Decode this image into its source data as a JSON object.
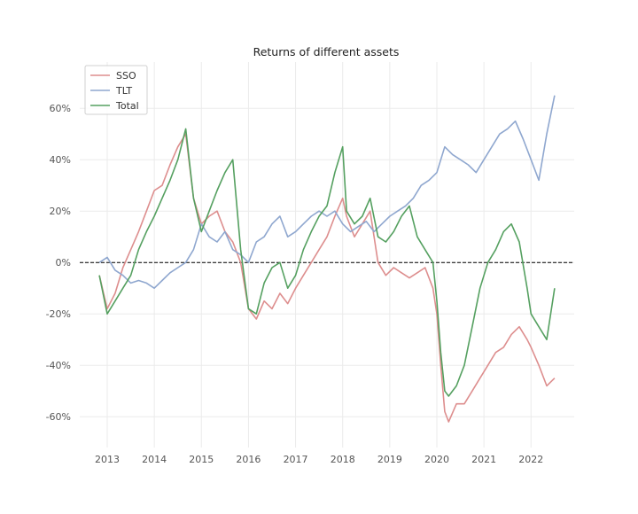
{
  "chart_data": {
    "type": "line",
    "title": "Returns of different assets",
    "xlabel": "",
    "ylabel": "",
    "x_ticks": [
      "2013",
      "2014",
      "2015",
      "2016",
      "2017",
      "2018",
      "2019",
      "2020",
      "2021",
      "2022"
    ],
    "y_ticks": [
      "-60%",
      "-40%",
      "-20%",
      "0%",
      "20%",
      "40%",
      "60%"
    ],
    "xlim": [
      "2012-06",
      "2022-12"
    ],
    "ylim": [
      -0.72,
      0.78
    ],
    "grid": true,
    "legend_position": "top-left",
    "reference_line": {
      "y": 0,
      "style": "dashed",
      "color": "#000000"
    },
    "series": [
      {
        "name": "SSO",
        "color": "#dd8e8e",
        "x": [
          "2012-11",
          "2013-01",
          "2013-03",
          "2013-05",
          "2013-07",
          "2013-09",
          "2013-11",
          "2014-01",
          "2014-03",
          "2014-05",
          "2014-07",
          "2014-09",
          "2014-11",
          "2015-01",
          "2015-03",
          "2015-05",
          "2015-07",
          "2015-09",
          "2015-11",
          "2016-01",
          "2016-03",
          "2016-05",
          "2016-07",
          "2016-09",
          "2016-11",
          "2017-01",
          "2017-03",
          "2017-05",
          "2017-07",
          "2017-09",
          "2017-11",
          "2018-01",
          "2018-02",
          "2018-04",
          "2018-06",
          "2018-08",
          "2018-10",
          "2018-12",
          "2019-02",
          "2019-04",
          "2019-06",
          "2019-08",
          "2019-10",
          "2019-12",
          "2020-01",
          "2020-02",
          "2020-03",
          "2020-04",
          "2020-06",
          "2020-08",
          "2020-10",
          "2020-12",
          "2021-02",
          "2021-04",
          "2021-06",
          "2021-08",
          "2021-10",
          "2021-12",
          "2022-01",
          "2022-03",
          "2022-05",
          "2022-07"
        ],
        "values": [
          -0.05,
          -0.18,
          -0.12,
          -0.02,
          0.05,
          0.12,
          0.2,
          0.28,
          0.3,
          0.38,
          0.45,
          0.5,
          0.25,
          0.15,
          0.18,
          0.2,
          0.12,
          0.08,
          0.0,
          -0.18,
          -0.22,
          -0.15,
          -0.18,
          -0.12,
          -0.16,
          -0.1,
          -0.05,
          0.0,
          0.05,
          0.1,
          0.18,
          0.25,
          0.18,
          0.1,
          0.15,
          0.2,
          0.0,
          -0.05,
          -0.02,
          -0.04,
          -0.06,
          -0.04,
          -0.02,
          -0.1,
          -0.2,
          -0.4,
          -0.58,
          -0.62,
          -0.55,
          -0.55,
          -0.5,
          -0.45,
          -0.4,
          -0.35,
          -0.33,
          -0.28,
          -0.25,
          -0.3,
          -0.33,
          -0.4,
          -0.48,
          -0.45
        ]
      },
      {
        "name": "TLT",
        "color": "#8fa7cf",
        "x": [
          "2012-11",
          "2013-01",
          "2013-03",
          "2013-05",
          "2013-07",
          "2013-09",
          "2013-11",
          "2014-01",
          "2014-03",
          "2014-05",
          "2014-07",
          "2014-09",
          "2014-11",
          "2015-01",
          "2015-03",
          "2015-05",
          "2015-07",
          "2015-09",
          "2015-11",
          "2016-01",
          "2016-03",
          "2016-05",
          "2016-07",
          "2016-09",
          "2016-11",
          "2017-01",
          "2017-03",
          "2017-05",
          "2017-07",
          "2017-09",
          "2017-11",
          "2018-01",
          "2018-03",
          "2018-05",
          "2018-07",
          "2018-09",
          "2018-11",
          "2019-01",
          "2019-03",
          "2019-05",
          "2019-07",
          "2019-09",
          "2019-11",
          "2020-01",
          "2020-03",
          "2020-05",
          "2020-07",
          "2020-09",
          "2020-11",
          "2021-01",
          "2021-03",
          "2021-05",
          "2021-07",
          "2021-09",
          "2021-11",
          "2022-01",
          "2022-03",
          "2022-05",
          "2022-07"
        ],
        "values": [
          0.0,
          0.02,
          -0.03,
          -0.05,
          -0.08,
          -0.07,
          -0.08,
          -0.1,
          -0.07,
          -0.04,
          -0.02,
          0.0,
          0.05,
          0.15,
          0.1,
          0.08,
          0.12,
          0.05,
          0.03,
          0.0,
          0.08,
          0.1,
          0.15,
          0.18,
          0.1,
          0.12,
          0.15,
          0.18,
          0.2,
          0.18,
          0.2,
          0.15,
          0.12,
          0.14,
          0.16,
          0.12,
          0.15,
          0.18,
          0.2,
          0.22,
          0.25,
          0.3,
          0.32,
          0.35,
          0.45,
          0.42,
          0.4,
          0.38,
          0.35,
          0.4,
          0.45,
          0.5,
          0.52,
          0.55,
          0.48,
          0.4,
          0.32,
          0.5,
          0.65
        ]
      },
      {
        "name": "Total",
        "color": "#55a060",
        "x": [
          "2012-11",
          "2013-01",
          "2013-03",
          "2013-05",
          "2013-07",
          "2013-09",
          "2013-11",
          "2014-01",
          "2014-03",
          "2014-05",
          "2014-07",
          "2014-09",
          "2014-11",
          "2015-01",
          "2015-03",
          "2015-05",
          "2015-07",
          "2015-09",
          "2015-11",
          "2016-01",
          "2016-03",
          "2016-05",
          "2016-07",
          "2016-09",
          "2016-11",
          "2017-01",
          "2017-03",
          "2017-05",
          "2017-07",
          "2017-09",
          "2017-11",
          "2018-01",
          "2018-02",
          "2018-04",
          "2018-06",
          "2018-08",
          "2018-10",
          "2018-12",
          "2019-02",
          "2019-04",
          "2019-06",
          "2019-08",
          "2019-10",
          "2019-12",
          "2020-01",
          "2020-02",
          "2020-03",
          "2020-04",
          "2020-06",
          "2020-08",
          "2020-10",
          "2020-12",
          "2021-02",
          "2021-04",
          "2021-06",
          "2021-08",
          "2021-10",
          "2021-12",
          "2022-01",
          "2022-03",
          "2022-05",
          "2022-07"
        ],
        "values": [
          -0.05,
          -0.2,
          -0.15,
          -0.1,
          -0.05,
          0.05,
          0.12,
          0.18,
          0.25,
          0.32,
          0.4,
          0.52,
          0.25,
          0.12,
          0.2,
          0.28,
          0.35,
          0.4,
          0.05,
          -0.18,
          -0.2,
          -0.08,
          -0.02,
          0.0,
          -0.1,
          -0.05,
          0.05,
          0.12,
          0.18,
          0.22,
          0.35,
          0.45,
          0.2,
          0.15,
          0.18,
          0.25,
          0.1,
          0.08,
          0.12,
          0.18,
          0.22,
          0.1,
          0.05,
          0.0,
          -0.15,
          -0.35,
          -0.5,
          -0.52,
          -0.48,
          -0.4,
          -0.25,
          -0.1,
          0.0,
          0.05,
          0.12,
          0.15,
          0.08,
          -0.1,
          -0.2,
          -0.25,
          -0.3,
          -0.1
        ]
      }
    ]
  }
}
